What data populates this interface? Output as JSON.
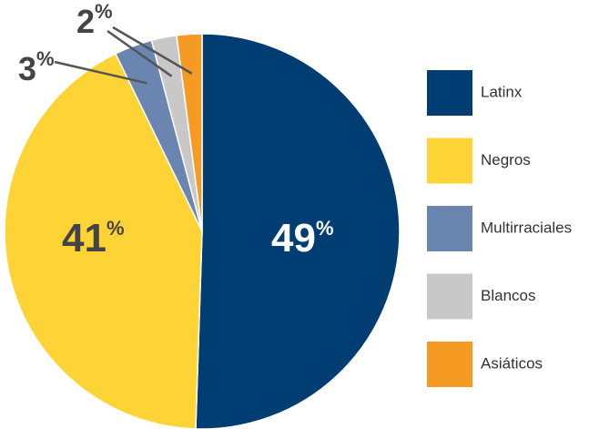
{
  "chart_data": {
    "type": "pie",
    "categories": [
      "Latinx",
      "Negros",
      "Multirraciales",
      "Blancos",
      "Asiáticos"
    ],
    "values": [
      49,
      41,
      3,
      2,
      2
    ],
    "value_labels": [
      "49%",
      "41%",
      "3%",
      "2%",
      null
    ],
    "colors": [
      "#003d73",
      "#fdd335",
      "#6a86b0",
      "#c8c8c8",
      "#f59a23"
    ],
    "legend": "right"
  }
}
